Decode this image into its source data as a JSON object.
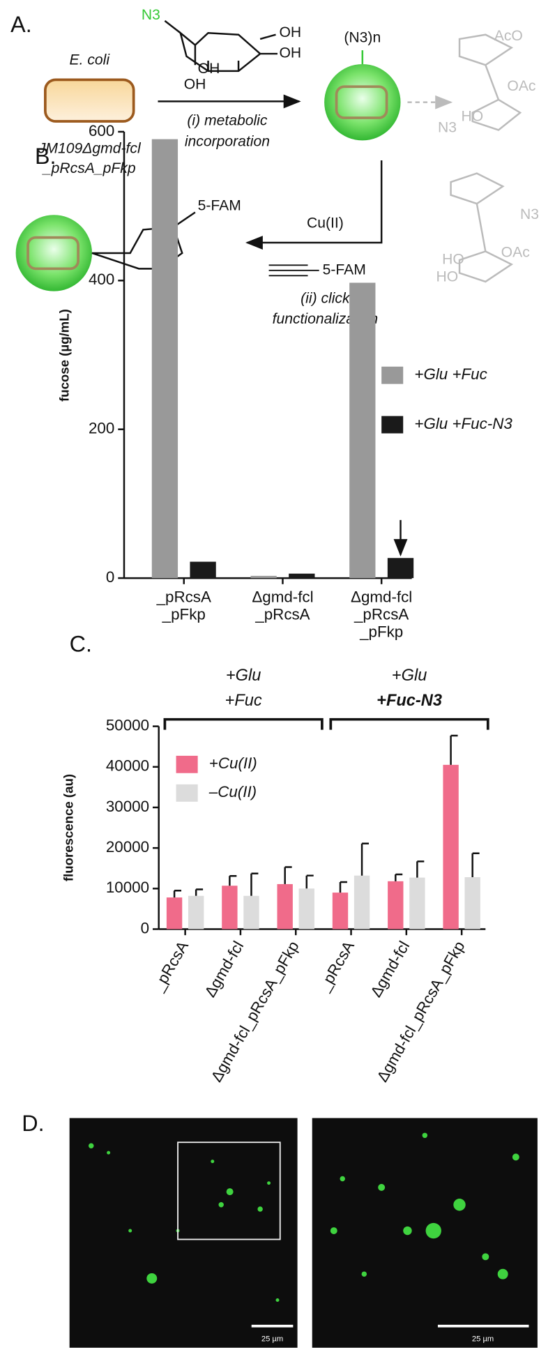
{
  "panel_a": {
    "label": "A.",
    "organism": "E. coli",
    "strain": "JM109Δgmd-fcl",
    "strain_suffix": "_pRcsA_pFkp",
    "sugar_azide": "N3",
    "sugar_oh": [
      "OH",
      "OH",
      "OH",
      "OH"
    ],
    "cell_azide": "(N3)n",
    "step1": [
      "(i) metabolic",
      "incorporation"
    ],
    "reagent": "Cu(II)",
    "alkyne": "5-FAM",
    "product_dye": "5-FAM",
    "step2": [
      "(ii) click",
      "functionalization"
    ],
    "glycan": [
      "AcO",
      "OAc",
      "N3",
      "HO",
      "N3",
      "OAc",
      "HO",
      "HO"
    ]
  },
  "chart_data": [
    {
      "type": "bar",
      "panel": "B.",
      "y_label": "fucose (µg/mL)",
      "categories": [
        "_pRcsA\n_pFkp",
        "Δgmd-fcl\n_pRcsA",
        "Δgmd-fcl\n_pRcsA\n_pFkp"
      ],
      "series": [
        {
          "name": "+Glu +Fuc",
          "color": "#999999",
          "values": [
            590,
            3,
            397
          ]
        },
        {
          "name": "+Glu +Fuc-N3",
          "color": "#1a1a1a",
          "values": [
            22,
            6,
            27
          ]
        }
      ],
      "ylim": [
        0,
        600
      ],
      "yticks": [
        0,
        200,
        400,
        600
      ],
      "legend": "top-right"
    },
    {
      "type": "bar",
      "panel": "C.",
      "y_label": "fluorescence (au)",
      "categories": [
        "_pRcsA",
        "Δgmd-fcl",
        "Δgmd-fcl_pRcsA_pFkp",
        "_pRcsA",
        "Δgmd-fcl",
        "Δgmd-fcl_pRcsA_pFkp"
      ],
      "groups": [
        [
          "+Glu",
          "+Fuc"
        ],
        [
          "+Glu",
          "+Fuc-N3"
        ]
      ],
      "series": [
        {
          "name": "+Cu(II)",
          "color": "#f06b8a",
          "values": [
            7800,
            10700,
            11100,
            9000,
            11800,
            40500
          ],
          "errors": [
            1700,
            2400,
            4200,
            2600,
            1700,
            7200
          ]
        },
        {
          "name": "–Cu(II)",
          "color": "#dcdcdc",
          "values": [
            8200,
            8200,
            10000,
            13200,
            12700,
            12800
          ],
          "errors": [
            1600,
            5500,
            3200,
            7900,
            4000,
            5900
          ]
        }
      ],
      "ylim": [
        0,
        50000
      ],
      "yticks": [
        0,
        10000,
        20000,
        30000,
        40000,
        50000
      ],
      "legend": "top-left"
    }
  ],
  "panel_d": {
    "label": "D.",
    "scale_bars": [
      "25 µm",
      "25 µm"
    ]
  }
}
